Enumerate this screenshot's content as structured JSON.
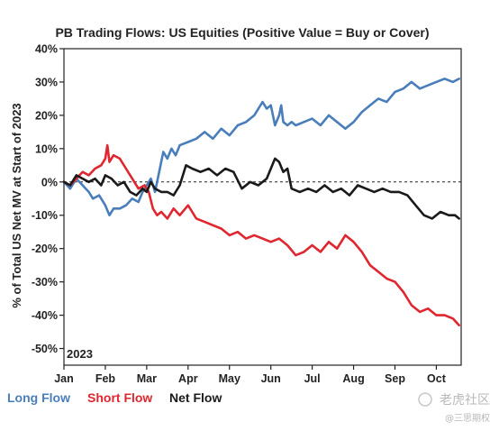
{
  "chart_data": {
    "type": "line",
    "title": "PB Trading Flows: US Equities (Positive Value = Buy or Cover)",
    "xlabel": "",
    "ylabel": "% of Total US Net MV at Start of 2023",
    "ylim": [
      -55,
      40
    ],
    "yticks": [
      40,
      30,
      20,
      10,
      0,
      -10,
      -20,
      -30,
      -40,
      -50
    ],
    "ytick_labels": [
      "40%",
      "30%",
      "20%",
      "10%",
      "0%",
      "-10%",
      "-20%",
      "-30%",
      "-40%",
      "-50%"
    ],
    "x_domain": [
      0,
      9.6
    ],
    "xticks": [
      0,
      1,
      2,
      3,
      4,
      5,
      6,
      7,
      8,
      9
    ],
    "xtick_labels": [
      "Jan",
      "Feb",
      "Mar",
      "Apr",
      "May",
      "Jun",
      "Jul",
      "Aug",
      "Sep",
      "Oct"
    ],
    "annotation": "2023",
    "zero_line": "dashed",
    "grid": false,
    "legend_position": "bottom-left",
    "series": [
      {
        "name": "Long Flow",
        "color": "#4a7ebb",
        "x": [
          0,
          0.15,
          0.3,
          0.45,
          0.6,
          0.7,
          0.85,
          1.0,
          1.1,
          1.2,
          1.35,
          1.5,
          1.65,
          1.8,
          1.9,
          2.0,
          2.1,
          2.2,
          2.3,
          2.4,
          2.5,
          2.6,
          2.7,
          2.8,
          3.0,
          3.2,
          3.4,
          3.6,
          3.8,
          4.0,
          4.2,
          4.4,
          4.6,
          4.8,
          4.9,
          5.0,
          5.1,
          5.2,
          5.25,
          5.3,
          5.4,
          5.5,
          5.6,
          5.8,
          6.0,
          6.2,
          6.4,
          6.6,
          6.8,
          7.0,
          7.2,
          7.4,
          7.6,
          7.8,
          8.0,
          8.2,
          8.4,
          8.6,
          8.8,
          9.0,
          9.2,
          9.4,
          9.55
        ],
        "values": [
          0,
          -2,
          1,
          -1,
          -3,
          -5,
          -4,
          -7,
          -10,
          -8,
          -8,
          -7,
          -5,
          -6,
          -3,
          -1,
          1,
          -3,
          3,
          9,
          7,
          10,
          8,
          11,
          12,
          13,
          15,
          13,
          16,
          14,
          17,
          18,
          20,
          24,
          22,
          23,
          17,
          20,
          23,
          18,
          17,
          18,
          17,
          18,
          19,
          17,
          20,
          18,
          16,
          18,
          21,
          23,
          25,
          24,
          27,
          28,
          30,
          28,
          29,
          30,
          31,
          30,
          31
        ]
      },
      {
        "name": "Short Flow",
        "color": "#e0262f",
        "x": [
          0,
          0.15,
          0.3,
          0.45,
          0.6,
          0.75,
          0.9,
          1.0,
          1.05,
          1.1,
          1.2,
          1.35,
          1.5,
          1.65,
          1.8,
          1.95,
          2.05,
          2.15,
          2.25,
          2.35,
          2.5,
          2.65,
          2.8,
          3.0,
          3.2,
          3.4,
          3.6,
          3.8,
          4.0,
          4.2,
          4.4,
          4.6,
          4.8,
          5.0,
          5.2,
          5.4,
          5.6,
          5.8,
          6.0,
          6.2,
          6.4,
          6.6,
          6.8,
          7.0,
          7.2,
          7.4,
          7.6,
          7.8,
          8.0,
          8.2,
          8.4,
          8.6,
          8.8,
          9.0,
          9.2,
          9.4,
          9.55
        ],
        "values": [
          0,
          -1,
          1,
          3,
          2,
          4,
          5,
          7,
          11,
          6,
          8,
          7,
          4,
          1,
          -2,
          -1,
          -3,
          -8,
          -10,
          -9,
          -11,
          -8,
          -10,
          -7,
          -11,
          -12,
          -13,
          -14,
          -16,
          -15,
          -17,
          -16,
          -17,
          -18,
          -17,
          -19,
          -22,
          -21,
          -19,
          -21,
          -18,
          -20,
          -16,
          -18,
          -21,
          -25,
          -27,
          -29,
          -30,
          -33,
          -37,
          -39,
          -38,
          -40,
          -40,
          -41,
          -43
        ]
      },
      {
        "name": "Net Flow",
        "color": "#1a1a1a",
        "x": [
          0,
          0.15,
          0.3,
          0.45,
          0.6,
          0.75,
          0.9,
          1.0,
          1.15,
          1.3,
          1.45,
          1.6,
          1.75,
          1.9,
          2.0,
          2.1,
          2.2,
          2.35,
          2.5,
          2.65,
          2.8,
          2.95,
          3.1,
          3.3,
          3.5,
          3.7,
          3.9,
          4.1,
          4.3,
          4.5,
          4.7,
          4.9,
          5.0,
          5.1,
          5.2,
          5.3,
          5.4,
          5.5,
          5.7,
          5.9,
          6.1,
          6.3,
          6.5,
          6.7,
          6.9,
          7.1,
          7.3,
          7.5,
          7.7,
          7.9,
          8.1,
          8.3,
          8.5,
          8.7,
          8.9,
          9.1,
          9.3,
          9.45,
          9.55
        ],
        "values": [
          0,
          -1,
          2,
          1,
          0,
          1,
          -1,
          2,
          1,
          -1,
          0,
          -3,
          -4,
          -2,
          -3,
          0,
          -2,
          -3,
          -3,
          -4,
          -1,
          5,
          4,
          3,
          4,
          2,
          4,
          3,
          -2,
          0,
          -1,
          1,
          4,
          7,
          6,
          3,
          4,
          -2,
          -3,
          -2,
          -3,
          -1,
          -3,
          -2,
          -4,
          -1,
          -2,
          -3,
          -2,
          -3,
          -3,
          -4,
          -7,
          -10,
          -11,
          -9,
          -10,
          -10,
          -11
        ]
      }
    ]
  },
  "watermark": {
    "text": "老虎社区",
    "sub": "@三思期权"
  }
}
